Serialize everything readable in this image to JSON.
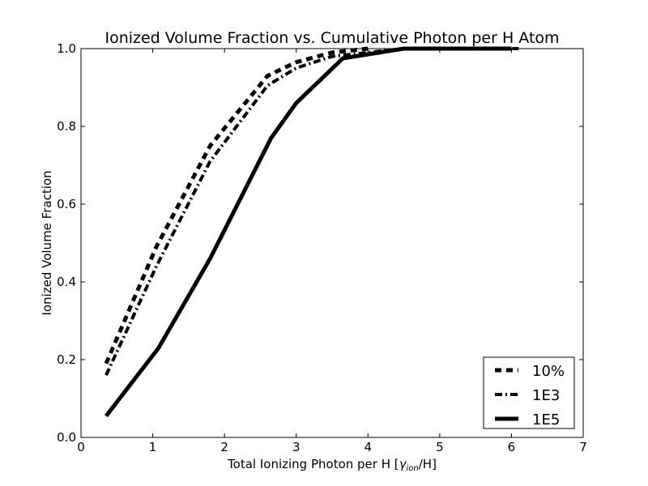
{
  "chart_data": {
    "type": "line",
    "title": "Ionized Volume Fraction vs. Cumulative Photon per H Atom",
    "xlabel": "Total Ionizing Photon per H [",
    "xlabel_math": "γ",
    "xlabel_sub": "ion",
    "xlabel_suffix": "/H]",
    "ylabel": "Ionized Volume Fraction",
    "xlim": [
      0,
      7
    ],
    "ylim": [
      0.0,
      1.0
    ],
    "xticks": [
      "0",
      "1",
      "2",
      "3",
      "4",
      "5",
      "6",
      "7"
    ],
    "yticks": [
      "0.0",
      "0.2",
      "0.4",
      "0.6",
      "0.8",
      "1.0"
    ],
    "grid": false,
    "legend_position": "lower-right",
    "series": [
      {
        "name": "10%",
        "style": "dashed",
        "color": "#000000",
        "x": [
          0.35,
          1.05,
          1.8,
          2.6,
          3.0,
          3.5,
          4.0
        ],
        "y": [
          0.19,
          0.49,
          0.75,
          0.93,
          0.965,
          0.99,
          1.0
        ]
      },
      {
        "name": "1E3",
        "style": "dashdot",
        "color": "#000000",
        "x": [
          0.35,
          1.05,
          1.8,
          2.6,
          3.0,
          3.5,
          4.0,
          4.5,
          5.0,
          5.5,
          6.1
        ],
        "y": [
          0.16,
          0.44,
          0.71,
          0.905,
          0.95,
          0.98,
          0.99,
          1.0,
          1.0,
          1.0,
          1.0
        ]
      },
      {
        "name": "1E5",
        "style": "solid",
        "color": "#000000",
        "x": [
          0.35,
          1.08,
          1.8,
          2.65,
          3.0,
          3.65,
          4.5,
          5.0,
          5.5,
          6.0
        ],
        "y": [
          0.055,
          0.23,
          0.46,
          0.77,
          0.86,
          0.975,
          1.0,
          1.0,
          1.0,
          1.0
        ]
      }
    ]
  }
}
